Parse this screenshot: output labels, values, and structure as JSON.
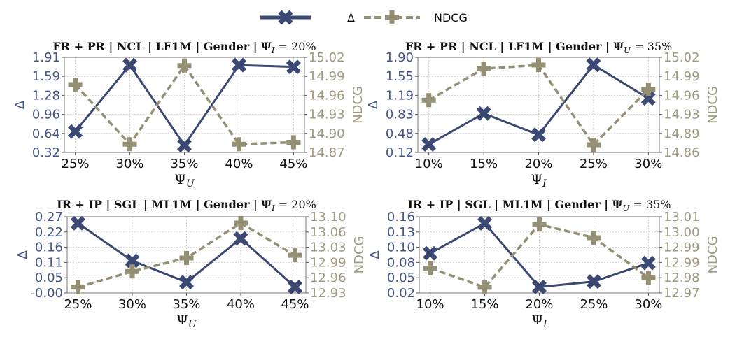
{
  "colors": {
    "delta": "#3a4873",
    "ndcg": "#958f74",
    "delta_tick": "#46568a",
    "ndcg_tick": "#a09a80",
    "grid": "#d0d0d0"
  },
  "legend": {
    "delta_label": "Δ",
    "ndcg_label": "NDCG",
    "placement": "top-center"
  },
  "chart_data": [
    {
      "type": "line",
      "title_main": "FR + PR | NCL | LF1M | Gender | Ψ",
      "title_sub": "I",
      "title_tail": " = 20%",
      "xlabel_main": "Ψ",
      "xlabel_sub": "U",
      "ylabel": "Δ",
      "y2label": "NDCG",
      "categories": [
        "25%",
        "30%",
        "35%",
        "40%",
        "45%"
      ],
      "yticks": [
        "0.32",
        "0.64",
        "0.96",
        "1.28",
        "1.59",
        "1.91"
      ],
      "ylim": [
        0.32,
        1.91
      ],
      "y2ticks": [
        "14.87",
        "14.90",
        "14.93",
        "14.96",
        "14.99",
        "15.02"
      ],
      "y2lim": [
        14.87,
        15.02
      ],
      "series": [
        {
          "name": "Δ",
          "axis": "left",
          "values": [
            0.67,
            1.78,
            0.44,
            1.78,
            1.75
          ]
        },
        {
          "name": "NDCG",
          "axis": "right",
          "values": [
            14.977,
            14.883,
            15.007,
            14.883,
            14.886
          ]
        }
      ]
    },
    {
      "type": "line",
      "title_main": "FR + PR | NCL | LF1M | Gender | Ψ",
      "title_sub": "U",
      "title_tail": " = 35%",
      "xlabel_main": "Ψ",
      "xlabel_sub": "I",
      "ylabel": "Δ",
      "y2label": "NDCG",
      "categories": [
        "10%",
        "15%",
        "20%",
        "25%",
        "30%"
      ],
      "yticks": [
        "0.12",
        "0.48",
        "0.83",
        "1.19",
        "1.55",
        "1.90"
      ],
      "ylim": [
        0.12,
        1.9
      ],
      "y2ticks": [
        "14.86",
        "14.89",
        "14.93",
        "14.96",
        "14.99",
        "15.02"
      ],
      "y2lim": [
        14.86,
        15.02
      ],
      "series": [
        {
          "name": "Δ",
          "axis": "left",
          "values": [
            0.27,
            0.85,
            0.45,
            1.76,
            1.13
          ]
        },
        {
          "name": "NDCG",
          "axis": "right",
          "values": [
            14.948,
            15.001,
            15.007,
            14.873,
            14.966
          ]
        }
      ]
    },
    {
      "type": "line",
      "title_main": "IR + IP | SGL | ML1M | Gender | Ψ",
      "title_sub": "I",
      "title_tail": " = 20%",
      "xlabel_main": "Ψ",
      "xlabel_sub": "U",
      "ylabel": "Δ",
      "y2label": "NDCG",
      "categories": [
        "25%",
        "30%",
        "35%",
        "40%",
        "45%"
      ],
      "yticks": [
        "-0.00",
        "0.05",
        "0.11",
        "0.16",
        "0.22",
        "0.27"
      ],
      "ylim": [
        0.0,
        0.27
      ],
      "y2ticks": [
        "12.93",
        "12.96",
        "12.99",
        "13.03",
        "13.06",
        "13.10"
      ],
      "y2lim": [
        12.93,
        13.1
      ],
      "series": [
        {
          "name": "Δ",
          "axis": "left",
          "values": [
            0.247,
            0.114,
            0.038,
            0.193,
            0.021
          ]
        },
        {
          "name": "NDCG",
          "axis": "right",
          "values": [
            12.943,
            12.978,
            13.008,
            13.086,
            13.014
          ]
        }
      ]
    },
    {
      "type": "line",
      "title_main": "IR + IP | SGL | ML1M | Gender | Ψ",
      "title_sub": "U",
      "title_tail": " = 35%",
      "xlabel_main": "Ψ",
      "xlabel_sub": "I",
      "ylabel": "Δ",
      "y2label": "NDCG",
      "categories": [
        "10%",
        "15%",
        "20%",
        "25%",
        "30%"
      ],
      "yticks": [
        "0.02",
        "0.05",
        "0.08",
        "0.10",
        "0.13",
        "0.16"
      ],
      "ylim": [
        0.02,
        0.16
      ],
      "y2ticks": [
        "12.97",
        "12.98",
        "12.99",
        "12.99",
        "13.00",
        "13.01"
      ],
      "y2lim": [
        12.97,
        13.01
      ],
      "series": [
        {
          "name": "Δ",
          "axis": "left",
          "values": [
            0.093,
            0.148,
            0.031,
            0.041,
            0.075
          ]
        },
        {
          "name": "NDCG",
          "axis": "right",
          "values": [
            12.983,
            12.973,
            13.006,
            12.999,
            12.978
          ]
        }
      ]
    }
  ]
}
